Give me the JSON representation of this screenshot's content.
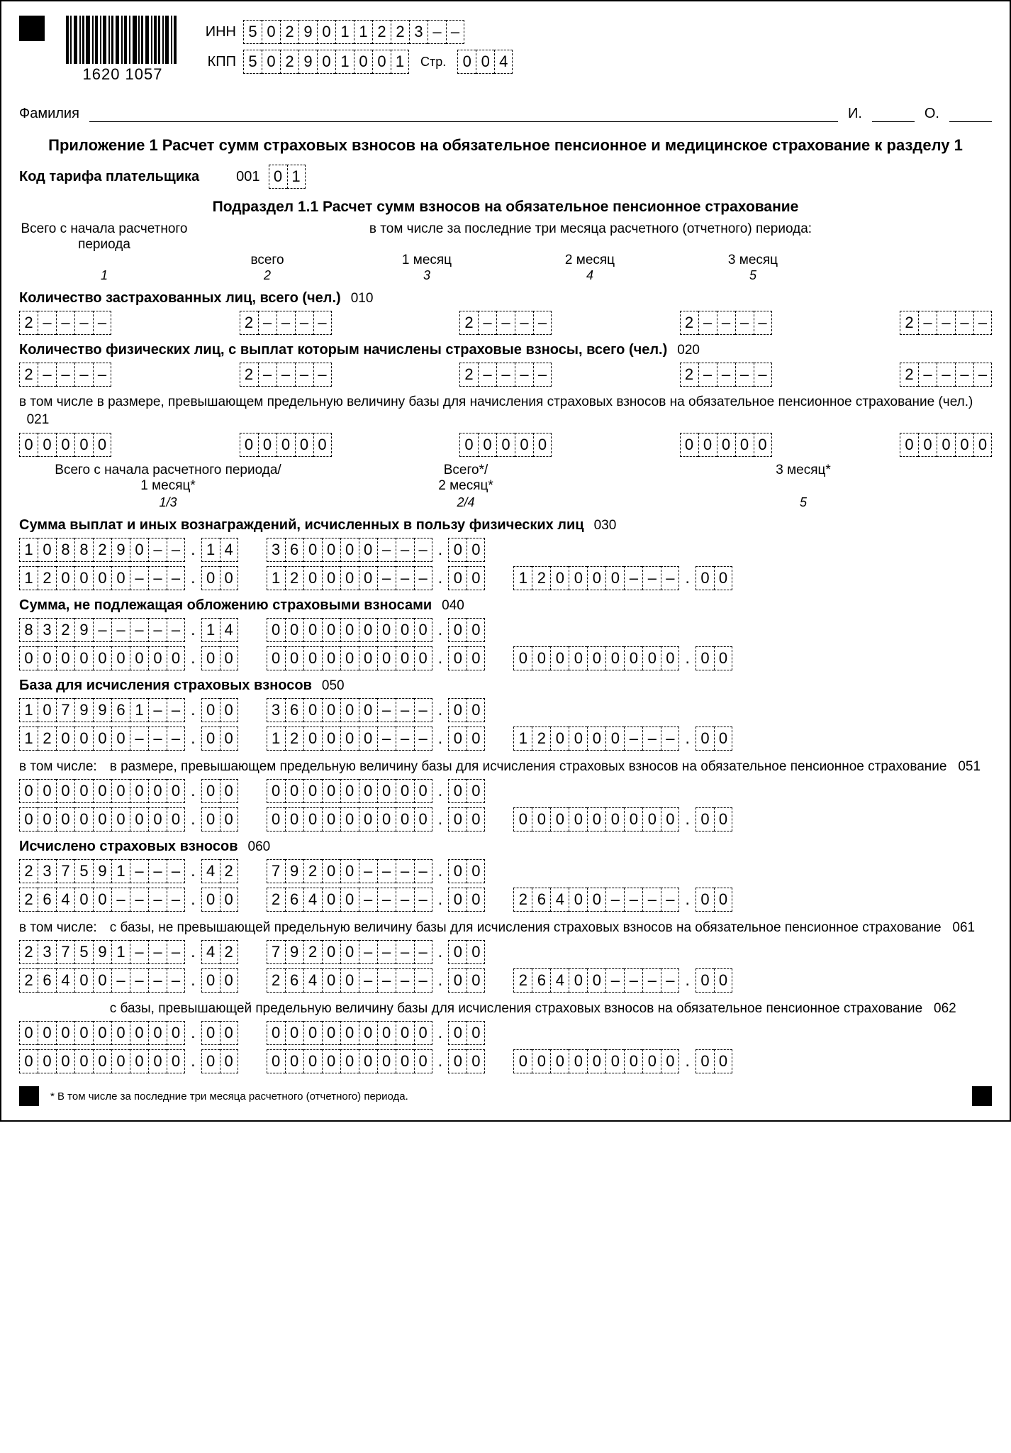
{
  "barcode_number": "1620 1057",
  "inn_label": "ИНН",
  "kpp_label": "КПП",
  "page_label": "Стр.",
  "inn": [
    "5",
    "0",
    "2",
    "9",
    "0",
    "1",
    "1",
    "2",
    "2",
    "3",
    "–",
    "–"
  ],
  "kpp": [
    "5",
    "0",
    "2",
    "9",
    "0",
    "1",
    "0",
    "0",
    "1"
  ],
  "page": [
    "0",
    "0",
    "4"
  ],
  "surname_label": "Фамилия",
  "i_label": "И.",
  "o_label": "О.",
  "title": "Приложение 1 Расчет сумм страховых взносов на обязательное пенсионное и медицинское страхование к разделу 1",
  "tariff_label": "Код тарифа плательщика",
  "tariff_code": "001",
  "tariff_cells": [
    "0",
    "1"
  ],
  "subsection_title": "Подраздел 1.1 Расчет сумм взносов на обязательное пенсионное страхование",
  "hdr_left": "Всего с начала расчетного периода",
  "hdr_right": "в том числе за последние три месяца расчетного (отчетного) периода:",
  "hdr_cols": [
    "всего",
    "1 месяц",
    "2 месяц",
    "3 месяц"
  ],
  "hdr_nums": [
    "1",
    "2",
    "3",
    "4",
    "5"
  ],
  "line010_label": "Количество застрахованных лиц, всего (чел.)",
  "line010_code": "010",
  "line010_vals": [
    [
      "2",
      "–",
      "–",
      "–",
      "–"
    ],
    [
      "2",
      "–",
      "–",
      "–",
      "–"
    ],
    [
      "2",
      "–",
      "–",
      "–",
      "–"
    ],
    [
      "2",
      "–",
      "–",
      "–",
      "–"
    ],
    [
      "2",
      "–",
      "–",
      "–",
      "–"
    ]
  ],
  "line020_label": "Количество физических лиц, с выплат которым начислены страховые взносы, всего (чел.)",
  "line020_code": "020",
  "line020_vals": [
    [
      "2",
      "–",
      "–",
      "–",
      "–"
    ],
    [
      "2",
      "–",
      "–",
      "–",
      "–"
    ],
    [
      "2",
      "–",
      "–",
      "–",
      "–"
    ],
    [
      "2",
      "–",
      "–",
      "–",
      "–"
    ],
    [
      "2",
      "–",
      "–",
      "–",
      "–"
    ]
  ],
  "line021_label": "в том числе в размере, превышающем предельную величину базы для начисления страховых взносов на обязательное пенсионное страхование (чел.)",
  "line021_code": "021",
  "line021_vals": [
    [
      "0",
      "0",
      "0",
      "0",
      "0"
    ],
    [
      "0",
      "0",
      "0",
      "0",
      "0"
    ],
    [
      "0",
      "0",
      "0",
      "0",
      "0"
    ],
    [
      "0",
      "0",
      "0",
      "0",
      "0"
    ],
    [
      "0",
      "0",
      "0",
      "0",
      "0"
    ]
  ],
  "triplet_hdr": [
    "Всего с начала расчетного периода/\n1 месяц*",
    "Всего*/\n2 месяц*",
    "3 месяц*"
  ],
  "triplet_nums": [
    "1/3",
    "2/4",
    "5"
  ],
  "line030_label": "Сумма выплат и иных вознаграждений, исчисленных в пользу физических лиц",
  "line030_code": "030",
  "line030": {
    "r1": [
      {
        "int": [
          "1",
          "0",
          "8",
          "8",
          "2",
          "9",
          "0",
          "–",
          "–"
        ],
        "dec": [
          "1",
          "4"
        ]
      },
      {
        "int": [
          "3",
          "6",
          "0",
          "0",
          "0",
          "0",
          "–",
          "–",
          "–"
        ],
        "dec": [
          "0",
          "0"
        ]
      }
    ],
    "r2": [
      {
        "int": [
          "1",
          "2",
          "0",
          "0",
          "0",
          "0",
          "–",
          "–",
          "–"
        ],
        "dec": [
          "0",
          "0"
        ]
      },
      {
        "int": [
          "1",
          "2",
          "0",
          "0",
          "0",
          "0",
          "–",
          "–",
          "–"
        ],
        "dec": [
          "0",
          "0"
        ]
      },
      {
        "int": [
          "1",
          "2",
          "0",
          "0",
          "0",
          "0",
          "–",
          "–",
          "–"
        ],
        "dec": [
          "0",
          "0"
        ]
      }
    ]
  },
  "line040_label": "Сумма, не подлежащая обложению страховыми взносами",
  "line040_code": "040",
  "line040": {
    "r1": [
      {
        "int": [
          "8",
          "3",
          "2",
          "9",
          "–",
          "–",
          "–",
          "–",
          "–"
        ],
        "dec": [
          "1",
          "4"
        ]
      },
      {
        "int": [
          "0",
          "0",
          "0",
          "0",
          "0",
          "0",
          "0",
          "0",
          "0"
        ],
        "dec": [
          "0",
          "0"
        ]
      }
    ],
    "r2": [
      {
        "int": [
          "0",
          "0",
          "0",
          "0",
          "0",
          "0",
          "0",
          "0",
          "0"
        ],
        "dec": [
          "0",
          "0"
        ]
      },
      {
        "int": [
          "0",
          "0",
          "0",
          "0",
          "0",
          "0",
          "0",
          "0",
          "0"
        ],
        "dec": [
          "0",
          "0"
        ]
      },
      {
        "int": [
          "0",
          "0",
          "0",
          "0",
          "0",
          "0",
          "0",
          "0",
          "0"
        ],
        "dec": [
          "0",
          "0"
        ]
      }
    ]
  },
  "line050_label": "База для исчисления страховых взносов",
  "line050_code": "050",
  "line050": {
    "r1": [
      {
        "int": [
          "1",
          "0",
          "7",
          "9",
          "9",
          "6",
          "1",
          "–",
          "–"
        ],
        "dec": [
          "0",
          "0"
        ]
      },
      {
        "int": [
          "3",
          "6",
          "0",
          "0",
          "0",
          "0",
          "–",
          "–",
          "–"
        ],
        "dec": [
          "0",
          "0"
        ]
      }
    ],
    "r2": [
      {
        "int": [
          "1",
          "2",
          "0",
          "0",
          "0",
          "0",
          "–",
          "–",
          "–"
        ],
        "dec": [
          "0",
          "0"
        ]
      },
      {
        "int": [
          "1",
          "2",
          "0",
          "0",
          "0",
          "0",
          "–",
          "–",
          "–"
        ],
        "dec": [
          "0",
          "0"
        ]
      },
      {
        "int": [
          "1",
          "2",
          "0",
          "0",
          "0",
          "0",
          "–",
          "–",
          "–"
        ],
        "dec": [
          "0",
          "0"
        ]
      }
    ]
  },
  "including_label": "в том числе:",
  "line051_label": "в размере, превышающем предельную величину базы для исчисления страховых взносов на обязательное пенсионное страхование",
  "line051_code": "051",
  "line051": {
    "r1": [
      {
        "int": [
          "0",
          "0",
          "0",
          "0",
          "0",
          "0",
          "0",
          "0",
          "0"
        ],
        "dec": [
          "0",
          "0"
        ]
      },
      {
        "int": [
          "0",
          "0",
          "0",
          "0",
          "0",
          "0",
          "0",
          "0",
          "0"
        ],
        "dec": [
          "0",
          "0"
        ]
      }
    ],
    "r2": [
      {
        "int": [
          "0",
          "0",
          "0",
          "0",
          "0",
          "0",
          "0",
          "0",
          "0"
        ],
        "dec": [
          "0",
          "0"
        ]
      },
      {
        "int": [
          "0",
          "0",
          "0",
          "0",
          "0",
          "0",
          "0",
          "0",
          "0"
        ],
        "dec": [
          "0",
          "0"
        ]
      },
      {
        "int": [
          "0",
          "0",
          "0",
          "0",
          "0",
          "0",
          "0",
          "0",
          "0"
        ],
        "dec": [
          "0",
          "0"
        ]
      }
    ]
  },
  "line060_label": "Исчислено страховых взносов",
  "line060_code": "060",
  "line060": {
    "r1": [
      {
        "int": [
          "2",
          "3",
          "7",
          "5",
          "9",
          "1",
          "–",
          "–",
          "–"
        ],
        "dec": [
          "4",
          "2"
        ]
      },
      {
        "int": [
          "7",
          "9",
          "2",
          "0",
          "0",
          "–",
          "–",
          "–",
          "–"
        ],
        "dec": [
          "0",
          "0"
        ]
      }
    ],
    "r2": [
      {
        "int": [
          "2",
          "6",
          "4",
          "0",
          "0",
          "–",
          "–",
          "–",
          "–"
        ],
        "dec": [
          "0",
          "0"
        ]
      },
      {
        "int": [
          "2",
          "6",
          "4",
          "0",
          "0",
          "–",
          "–",
          "–",
          "–"
        ],
        "dec": [
          "0",
          "0"
        ]
      },
      {
        "int": [
          "2",
          "6",
          "4",
          "0",
          "0",
          "–",
          "–",
          "–",
          "–"
        ],
        "dec": [
          "0",
          "0"
        ]
      }
    ]
  },
  "line061_label": "с базы, не превышающей предельную величину базы для исчисления страховых взносов на обязательное пенсионное страхование",
  "line061_code": "061",
  "line061": {
    "r1": [
      {
        "int": [
          "2",
          "3",
          "7",
          "5",
          "9",
          "1",
          "–",
          "–",
          "–"
        ],
        "dec": [
          "4",
          "2"
        ]
      },
      {
        "int": [
          "7",
          "9",
          "2",
          "0",
          "0",
          "–",
          "–",
          "–",
          "–"
        ],
        "dec": [
          "0",
          "0"
        ]
      }
    ],
    "r2": [
      {
        "int": [
          "2",
          "6",
          "4",
          "0",
          "0",
          "–",
          "–",
          "–",
          "–"
        ],
        "dec": [
          "0",
          "0"
        ]
      },
      {
        "int": [
          "2",
          "6",
          "4",
          "0",
          "0",
          "–",
          "–",
          "–",
          "–"
        ],
        "dec": [
          "0",
          "0"
        ]
      },
      {
        "int": [
          "2",
          "6",
          "4",
          "0",
          "0",
          "–",
          "–",
          "–",
          "–"
        ],
        "dec": [
          "0",
          "0"
        ]
      }
    ]
  },
  "line062_label": "с базы, превышающей предельную величину базы для исчисления страховых взносов на обязательное пенсионное страхование",
  "line062_code": "062",
  "line062": {
    "r1": [
      {
        "int": [
          "0",
          "0",
          "0",
          "0",
          "0",
          "0",
          "0",
          "0",
          "0"
        ],
        "dec": [
          "0",
          "0"
        ]
      },
      {
        "int": [
          "0",
          "0",
          "0",
          "0",
          "0",
          "0",
          "0",
          "0",
          "0"
        ],
        "dec": [
          "0",
          "0"
        ]
      }
    ],
    "r2": [
      {
        "int": [
          "0",
          "0",
          "0",
          "0",
          "0",
          "0",
          "0",
          "0",
          "0"
        ],
        "dec": [
          "0",
          "0"
        ]
      },
      {
        "int": [
          "0",
          "0",
          "0",
          "0",
          "0",
          "0",
          "0",
          "0",
          "0"
        ],
        "dec": [
          "0",
          "0"
        ]
      },
      {
        "int": [
          "0",
          "0",
          "0",
          "0",
          "0",
          "0",
          "0",
          "0",
          "0"
        ],
        "dec": [
          "0",
          "0"
        ]
      }
    ]
  },
  "footnote": "* В том числе за последние три месяца расчетного (отчетного) периода."
}
